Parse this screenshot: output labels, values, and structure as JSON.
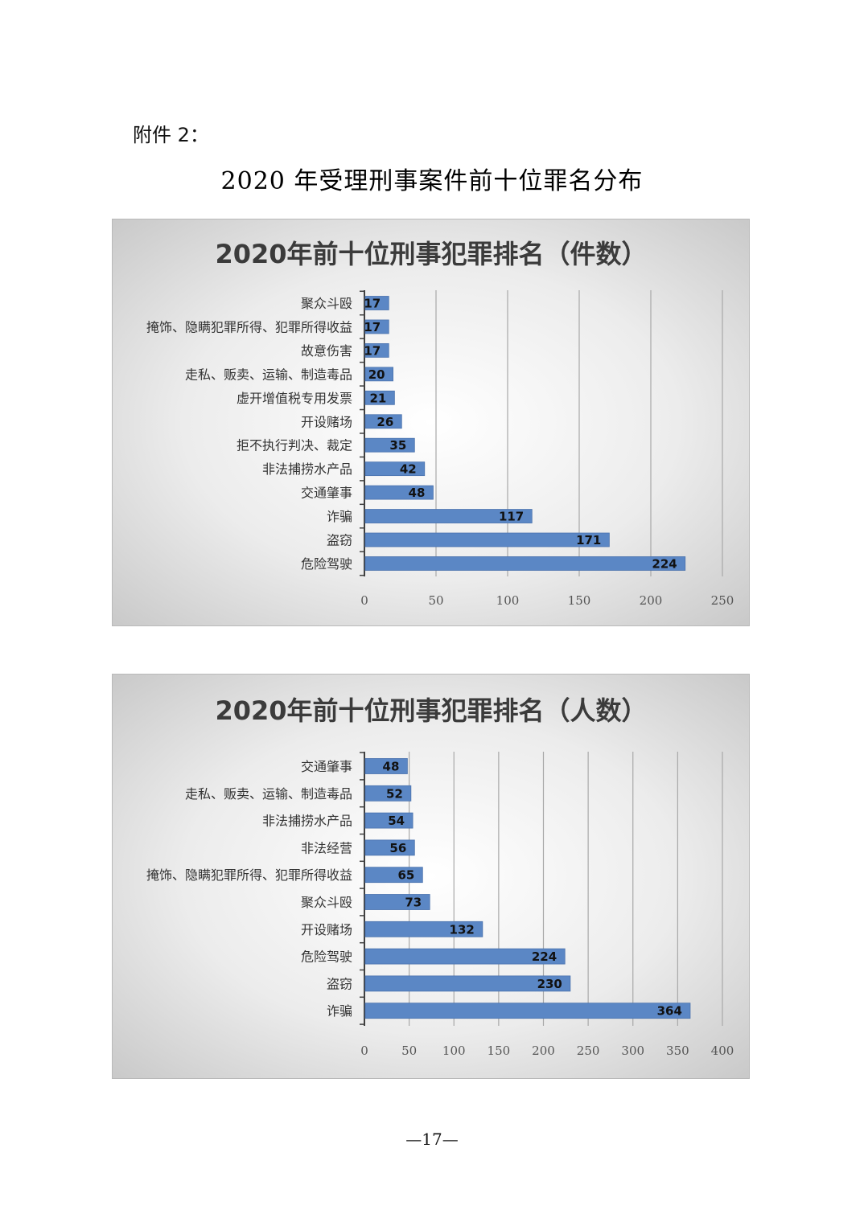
{
  "header": {
    "attachment_label": "附件 2：",
    "document_title": "2020 年受理刑事案件前十位罪名分布"
  },
  "footer": {
    "page_number": "—17—"
  },
  "colors": {
    "bar": "#5b87c5",
    "bar_edge": "#4a72ad",
    "grid": "#a8a8a8",
    "axis": "#404040"
  },
  "chart_data": [
    {
      "type": "bar",
      "orientation": "horizontal",
      "title": "2020年前十位刑事犯罪排名（件数）",
      "categories": [
        "聚众斗殴",
        "掩饰、隐瞒犯罪所得、犯罪所得收益",
        "故意伤害",
        "走私、贩卖、运输、制造毒品",
        "虚开增值税专用发票",
        "开设赌场",
        "拒不执行判决、裁定",
        "非法捕捞水产品",
        "交通肇事",
        "诈骗",
        "盗窃",
        "危险驾驶"
      ],
      "values": [
        17,
        17,
        17,
        20,
        21,
        26,
        35,
        42,
        48,
        117,
        171,
        224
      ],
      "xlim": [
        0,
        250
      ],
      "xticks": [
        "0",
        "50",
        "100",
        "150",
        "200",
        "250"
      ],
      "grid": true,
      "data_labels": true
    },
    {
      "type": "bar",
      "orientation": "horizontal",
      "title": "2020年前十位刑事犯罪排名（人数）",
      "categories": [
        "交通肇事",
        "走私、贩卖、运输、制造毒品",
        "非法捕捞水产品",
        "非法经营",
        "掩饰、隐瞒犯罪所得、犯罪所得收益",
        "聚众斗殴",
        "开设赌场",
        "危险驾驶",
        "盗窃",
        "诈骗"
      ],
      "values": [
        48,
        52,
        54,
        56,
        65,
        73,
        132,
        224,
        230,
        364
      ],
      "xlim": [
        0,
        400
      ],
      "xticks": [
        "0",
        "50",
        "100",
        "150",
        "200",
        "250",
        "300",
        "350",
        "400"
      ],
      "grid": true,
      "data_labels": true
    }
  ]
}
